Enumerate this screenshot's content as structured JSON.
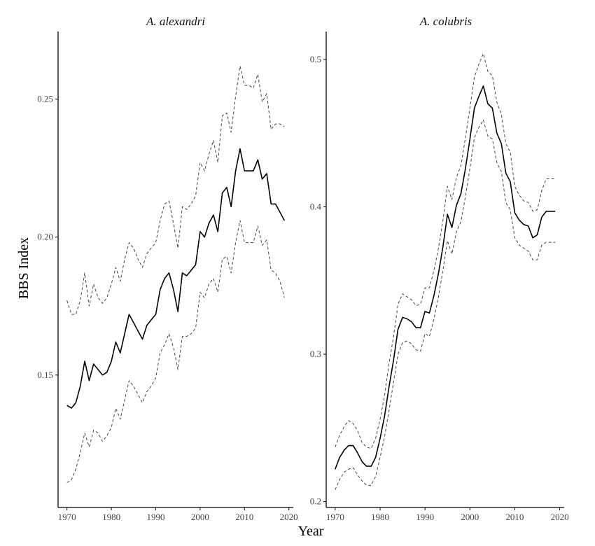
{
  "chart_data": [
    {
      "type": "line",
      "title": "A. alexandri",
      "xlabel": "Year",
      "ylabel": "BBS Index",
      "xlim": [
        1968,
        2021
      ],
      "ylim": [
        0.102,
        0.2745
      ],
      "xticks": [
        1970,
        1980,
        1990,
        2000,
        2010,
        2020
      ],
      "xtick_labels": [
        "1970",
        "1980",
        "1990",
        "2000",
        "2010",
        "2020"
      ],
      "yticks": [
        0.15,
        0.2,
        0.25
      ],
      "ytick_labels": [
        "0.15",
        "0.20",
        "0.25"
      ],
      "grid": false,
      "x": [
        1970,
        1971,
        1972,
        1973,
        1974,
        1975,
        1976,
        1977,
        1978,
        1979,
        1980,
        1981,
        1982,
        1983,
        1984,
        1985,
        1986,
        1987,
        1988,
        1989,
        1990,
        1991,
        1992,
        1993,
        1994,
        1995,
        1996,
        1997,
        1998,
        1999,
        2000,
        2001,
        2002,
        2003,
        2004,
        2005,
        2006,
        2007,
        2008,
        2009,
        2010,
        2011,
        2012,
        2013,
        2014,
        2015,
        2016,
        2017,
        2018,
        2019
      ],
      "series": [
        {
          "role": "estimate",
          "style": "solid",
          "values": [
            0.139,
            0.138,
            0.14,
            0.146,
            0.155,
            0.148,
            0.154,
            0.152,
            0.15,
            0.151,
            0.155,
            0.162,
            0.158,
            0.165,
            0.172,
            0.169,
            0.166,
            0.163,
            0.168,
            0.17,
            0.172,
            0.181,
            0.185,
            0.187,
            0.181,
            0.173,
            0.187,
            0.186,
            0.188,
            0.19,
            0.202,
            0.2,
            0.205,
            0.208,
            0.202,
            0.216,
            0.218,
            0.211,
            0.224,
            0.232,
            0.224,
            0.224,
            0.224,
            0.228,
            0.221,
            0.223,
            0.212,
            0.212,
            0.209,
            0.206
          ]
        },
        {
          "role": "upper-ci",
          "style": "dashed",
          "values": [
            0.177,
            0.172,
            0.172,
            0.177,
            0.187,
            0.175,
            0.183,
            0.178,
            0.176,
            0.178,
            0.183,
            0.189,
            0.184,
            0.192,
            0.198,
            0.196,
            0.192,
            0.189,
            0.194,
            0.196,
            0.198,
            0.206,
            0.212,
            0.213,
            0.205,
            0.196,
            0.211,
            0.21,
            0.212,
            0.215,
            0.227,
            0.224,
            0.23,
            0.235,
            0.227,
            0.244,
            0.245,
            0.238,
            0.251,
            0.262,
            0.255,
            0.255,
            0.254,
            0.259,
            0.249,
            0.252,
            0.239,
            0.241,
            0.241,
            0.24
          ]
        },
        {
          "role": "lower-ci",
          "style": "dashed",
          "values": [
            0.111,
            0.112,
            0.116,
            0.122,
            0.129,
            0.124,
            0.13,
            0.129,
            0.126,
            0.128,
            0.131,
            0.138,
            0.134,
            0.141,
            0.148,
            0.146,
            0.143,
            0.14,
            0.144,
            0.146,
            0.149,
            0.158,
            0.161,
            0.165,
            0.16,
            0.152,
            0.164,
            0.164,
            0.165,
            0.167,
            0.18,
            0.178,
            0.183,
            0.185,
            0.18,
            0.192,
            0.193,
            0.187,
            0.198,
            0.206,
            0.198,
            0.198,
            0.198,
            0.204,
            0.197,
            0.199,
            0.188,
            0.187,
            0.184,
            0.178
          ]
        }
      ]
    },
    {
      "type": "line",
      "title": "A. colubris",
      "xlabel": "Year",
      "ylabel": "",
      "xlim": [
        1968,
        2021
      ],
      "ylim": [
        0.196,
        0.519
      ],
      "xticks": [
        1970,
        1980,
        1990,
        2000,
        2010,
        2020
      ],
      "xtick_labels": [
        "1970",
        "1980",
        "1990",
        "2000",
        "2010",
        "2020"
      ],
      "yticks": [
        0.2,
        0.3,
        0.4,
        0.5
      ],
      "ytick_labels": [
        "0.2",
        "0.3",
        "0.4",
        "0.5"
      ],
      "grid": false,
      "x": [
        1970,
        1971,
        1972,
        1973,
        1974,
        1975,
        1976,
        1977,
        1978,
        1979,
        1980,
        1981,
        1982,
        1983,
        1984,
        1985,
        1986,
        1987,
        1988,
        1989,
        1990,
        1991,
        1992,
        1993,
        1994,
        1995,
        1996,
        1997,
        1998,
        1999,
        2000,
        2001,
        2002,
        2003,
        2004,
        2005,
        2006,
        2007,
        2008,
        2009,
        2010,
        2011,
        2012,
        2013,
        2014,
        2015,
        2016,
        2017,
        2018,
        2019
      ],
      "series": [
        {
          "role": "estimate",
          "style": "solid",
          "values": [
            0.222,
            0.23,
            0.235,
            0.238,
            0.238,
            0.233,
            0.227,
            0.224,
            0.224,
            0.23,
            0.243,
            0.258,
            0.278,
            0.296,
            0.317,
            0.325,
            0.324,
            0.322,
            0.318,
            0.318,
            0.329,
            0.328,
            0.34,
            0.355,
            0.373,
            0.395,
            0.386,
            0.401,
            0.409,
            0.426,
            0.446,
            0.467,
            0.475,
            0.482,
            0.47,
            0.467,
            0.45,
            0.443,
            0.423,
            0.417,
            0.396,
            0.391,
            0.388,
            0.387,
            0.379,
            0.381,
            0.393,
            0.397,
            0.397,
            0.397
          ]
        },
        {
          "role": "upper-ci",
          "style": "dashed",
          "values": [
            0.237,
            0.245,
            0.251,
            0.255,
            0.253,
            0.248,
            0.24,
            0.237,
            0.236,
            0.243,
            0.256,
            0.272,
            0.294,
            0.312,
            0.334,
            0.341,
            0.339,
            0.337,
            0.333,
            0.334,
            0.345,
            0.345,
            0.357,
            0.372,
            0.391,
            0.414,
            0.405,
            0.42,
            0.428,
            0.447,
            0.467,
            0.488,
            0.497,
            0.504,
            0.492,
            0.489,
            0.471,
            0.463,
            0.443,
            0.437,
            0.414,
            0.408,
            0.404,
            0.403,
            0.397,
            0.398,
            0.411,
            0.419,
            0.419,
            0.419
          ]
        },
        {
          "role": "lower-ci",
          "style": "dashed",
          "values": [
            0.208,
            0.215,
            0.22,
            0.222,
            0.223,
            0.218,
            0.214,
            0.211,
            0.211,
            0.217,
            0.23,
            0.244,
            0.262,
            0.281,
            0.3,
            0.308,
            0.309,
            0.307,
            0.303,
            0.302,
            0.314,
            0.312,
            0.324,
            0.339,
            0.357,
            0.377,
            0.368,
            0.383,
            0.39,
            0.407,
            0.426,
            0.447,
            0.454,
            0.459,
            0.448,
            0.446,
            0.43,
            0.424,
            0.403,
            0.398,
            0.379,
            0.374,
            0.372,
            0.37,
            0.364,
            0.364,
            0.374,
            0.376,
            0.376,
            0.376
          ]
        }
      ]
    }
  ]
}
